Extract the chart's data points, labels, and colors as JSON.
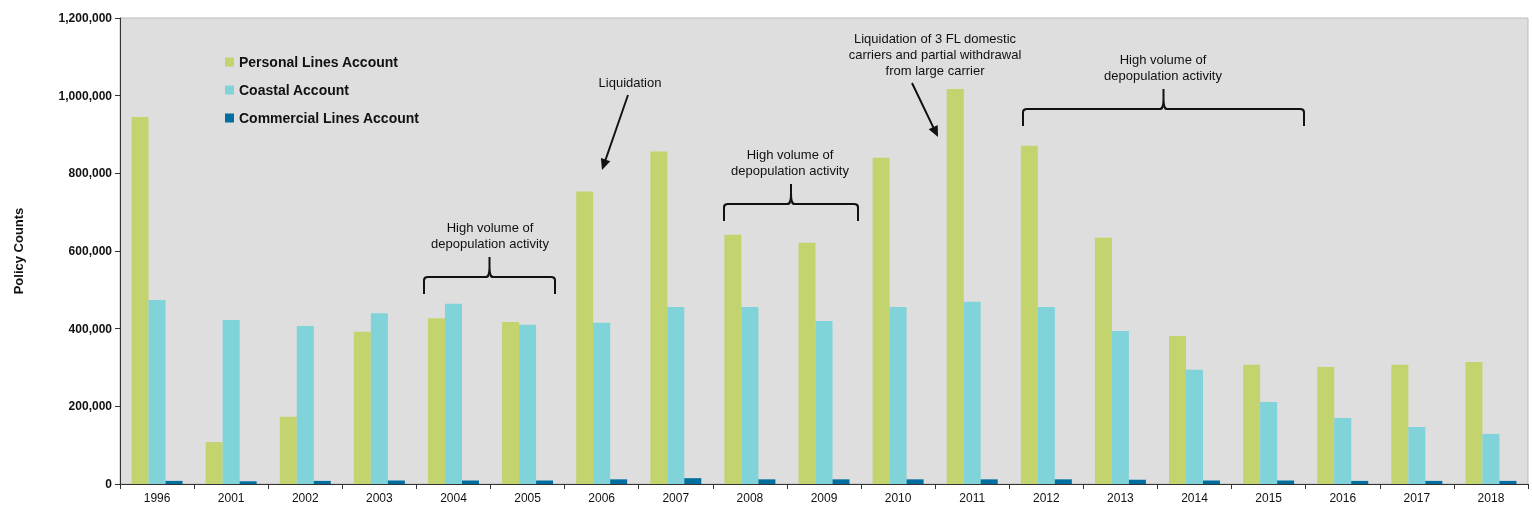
{
  "chart_data": {
    "type": "bar",
    "ylabel": "Policy Counts",
    "categories": [
      "1996",
      "2001",
      "2002",
      "2003",
      "2004",
      "2005",
      "2006",
      "2007",
      "2008",
      "2009",
      "2010",
      "2011",
      "2012",
      "2013",
      "2014",
      "2015",
      "2016",
      "2017",
      "2018"
    ],
    "series": [
      {
        "name": "Personal Lines Account",
        "color": "#c3d36e",
        "values": [
          945000,
          108000,
          173000,
          392000,
          427000,
          417000,
          753000,
          856000,
          642000,
          621000,
          840000,
          1017000,
          871000,
          634000,
          381000,
          307000,
          301000,
          307000,
          314000
        ]
      },
      {
        "name": "Coastal Account",
        "color": "#7fd3d9",
        "values": [
          474000,
          422000,
          407000,
          440000,
          464000,
          410000,
          415000,
          456000,
          456000,
          420000,
          456000,
          469000,
          456000,
          394000,
          294000,
          211000,
          170000,
          147000,
          129000
        ]
      },
      {
        "name": "Commercial Lines Account",
        "color": "#006fa0",
        "values": [
          8000,
          7000,
          8000,
          9000,
          9000,
          9000,
          12000,
          15000,
          12000,
          12000,
          12000,
          12000,
          12000,
          11000,
          9000,
          9000,
          8000,
          8000,
          8000
        ]
      }
    ],
    "ylim": [
      0,
      1200000
    ],
    "yticks": [
      0,
      {
        "value": 200000,
        "label": "200,000"
      },
      {
        "value": 400000,
        "label": "400,000"
      },
      {
        "value": 600000,
        "label": "600,000"
      },
      {
        "value": 800000,
        "label": "800,000"
      },
      {
        "value": 1000000,
        "label": "1,000,000"
      },
      {
        "value": 1200000,
        "label": "1,200,000"
      }
    ],
    "legend": "top left",
    "annotations": [
      "High volume of depopulation activity",
      "Liquidation",
      "High volume of depopulation activity",
      "Liquidation of 3 FL domestic carriers and partial withdrawal from large carrier",
      "High volume of depopulation activity"
    ]
  }
}
